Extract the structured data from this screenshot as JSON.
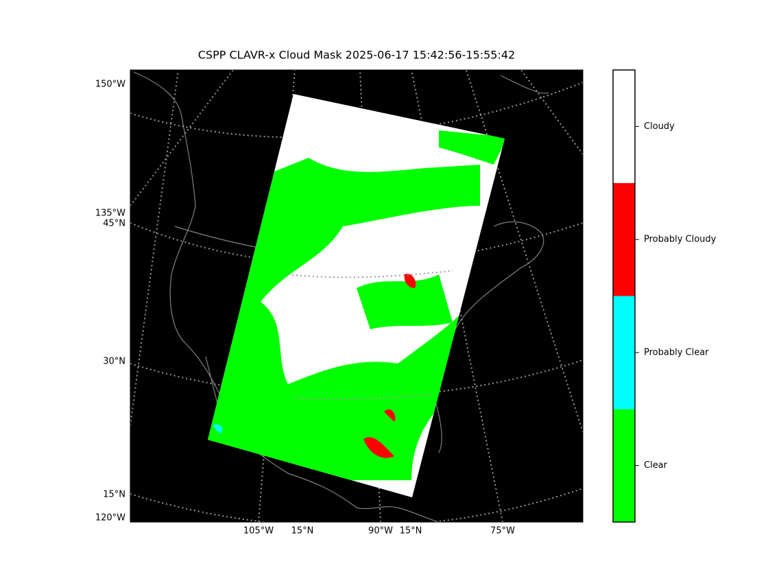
{
  "title": "CSPP CLAVR-x Cloud Mask 2025-06-17 15:42:56-15:55:42",
  "map": {
    "left_labels": [
      "150°W",
      "135°W",
      "45°N",
      "30°N",
      "15°N",
      "120°W"
    ],
    "bottom_labels": [
      "105°W",
      "15°N",
      "90°W",
      "15°N",
      "75°W"
    ],
    "background": "#000000",
    "swath_color": "#ffffff",
    "graticule_color": "#999999"
  },
  "colorbar": {
    "categories": [
      "Clear",
      "Probably Clear",
      "Probably Cloudy",
      "Cloudy"
    ],
    "colors": [
      "#00ff00",
      "#00ffff",
      "#ff0000",
      "#ffffff"
    ]
  }
}
